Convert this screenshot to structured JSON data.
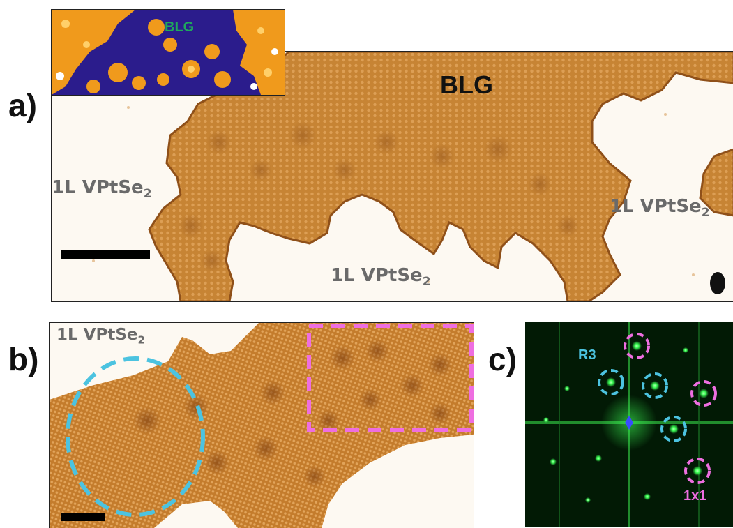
{
  "panels": {
    "a": {
      "letter": "a)",
      "inset_label": "BLG",
      "main_label": "BLG",
      "regions": [
        {
          "text": "1L VPtSe",
          "sub": "2"
        },
        {
          "text": "1L VPtSe",
          "sub": "2"
        },
        {
          "text": "1L VPtSe",
          "sub": "2"
        }
      ]
    },
    "b": {
      "letter": "b)",
      "region": {
        "text": "1L VPtSe",
        "sub": "2"
      },
      "circle_color": "#4cc3e0",
      "box_color": "#ee6ee0"
    },
    "c": {
      "letter": "c)",
      "label_r3": "R3",
      "label_1x1": "1x1",
      "r3_color": "#4cc3e0",
      "1x1_color": "#ee6ee0"
    }
  },
  "colors": {
    "substrate": "#fdf9f2",
    "graphene": "#c98636",
    "fft_bg": "#031b06",
    "fft_spot": "#3cff55"
  }
}
